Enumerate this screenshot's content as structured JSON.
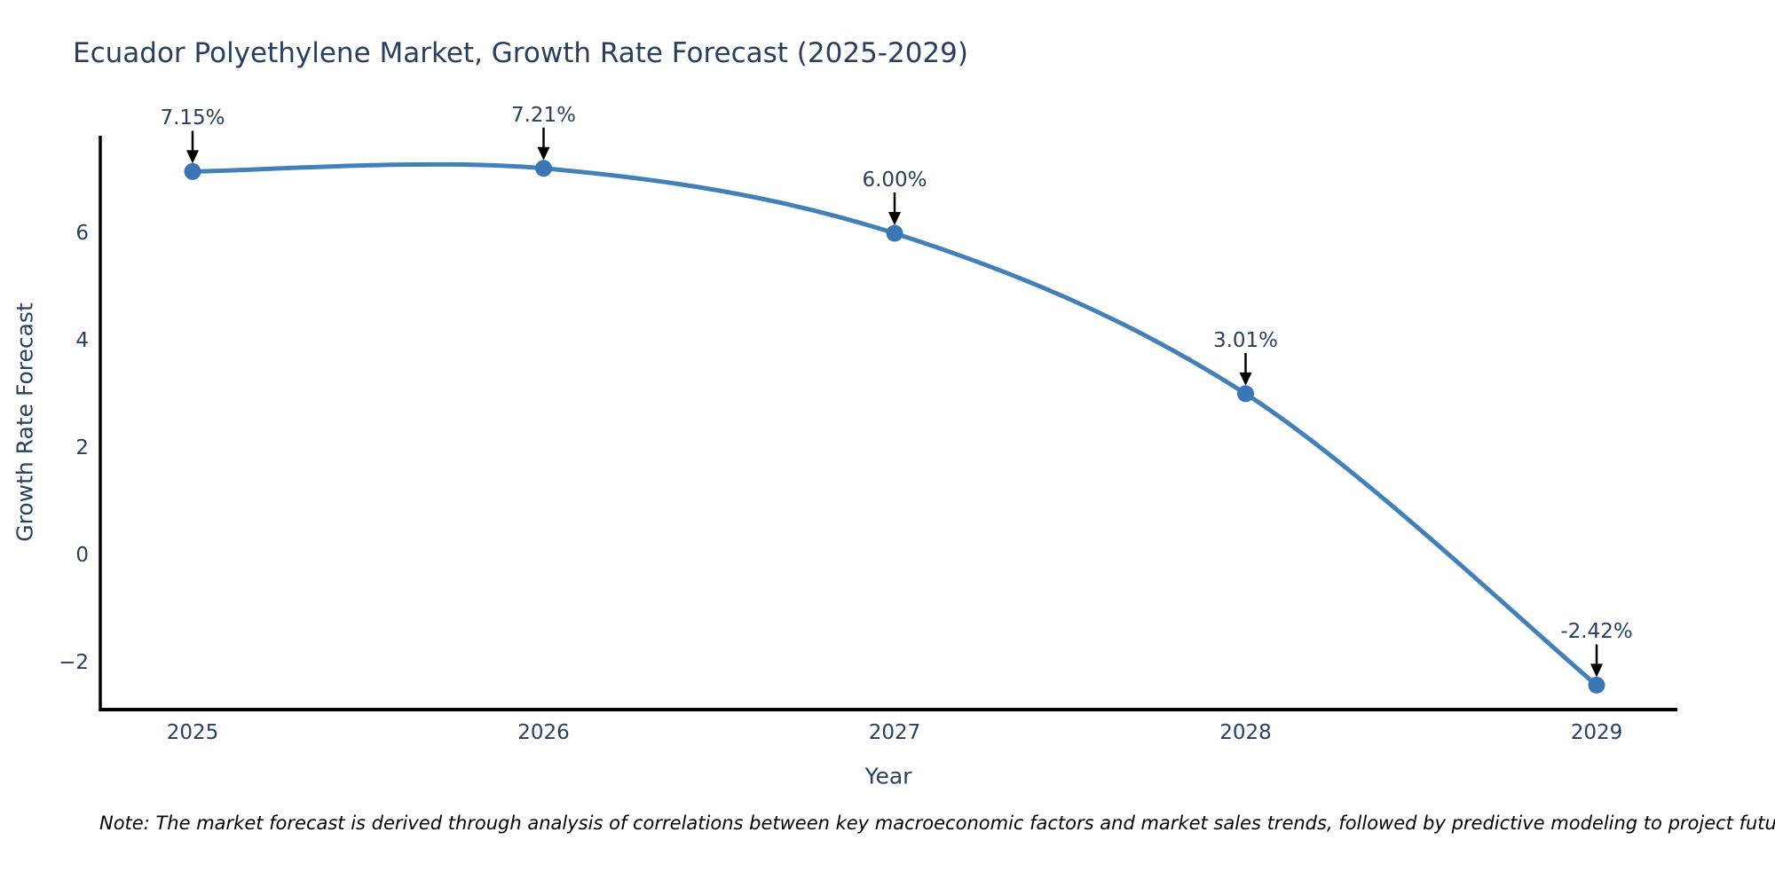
{
  "page": {
    "title": "Ecuador Polyethylene Market, Growth Rate Forecast (2025-2029)",
    "note": "Note: The market forecast is derived through analysis of correlations between key macroeconomic factors and market sales trends, followed by predictive modeling to project future sales"
  },
  "chart_data": {
    "type": "line",
    "title": "Ecuador Polyethylene Market, Growth Rate Forecast (2025-2029)",
    "xlabel": "Year",
    "ylabel": "Growth Rate Forecast",
    "categories": [
      "2025",
      "2026",
      "2027",
      "2028",
      "2029"
    ],
    "values": [
      7.15,
      7.21,
      6.0,
      3.01,
      -2.42
    ],
    "point_labels": [
      "7.15%",
      "7.21%",
      "6.00%",
      "3.01%",
      "-2.42%"
    ],
    "ytick_values": [
      6,
      4,
      2,
      0,
      -2
    ],
    "ytick_labels": [
      "6",
      "4",
      "2",
      "0",
      "−2"
    ],
    "ylim": [
      -2.9,
      7.7
    ],
    "grid": false,
    "legend": "none",
    "line_shape": "spline",
    "marker_style": "circle",
    "annotation_arrows": true,
    "colors": {
      "line": "#4380b8",
      "marker": "#3a76b4",
      "axis": "#000000",
      "text": "#2a3f5f",
      "arrow": "#000000",
      "note_text": "#000000",
      "background": "#ffffff"
    }
  }
}
